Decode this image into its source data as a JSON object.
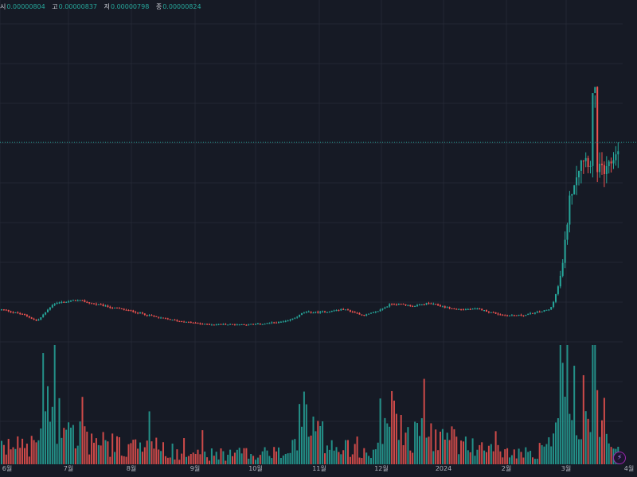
{
  "legend": {
    "open_label": "시",
    "open": "0.00000804",
    "high_label": "고",
    "high": "0.00000837",
    "low_label": "저",
    "low": "0.00000798",
    "close_label": "종",
    "close": "0.00000824"
  },
  "badge": {
    "glyph": "⚡",
    "icon": "lightning-icon"
  },
  "colors": {
    "background": "#161a25",
    "grid": "#232733",
    "up": "#26a69a",
    "down": "#ef5350",
    "price_line": "#26a69a",
    "axis_text": "#b2b5be"
  },
  "chart_data": {
    "type": "candlestick",
    "x_ticks": [
      "6월",
      "7월",
      "8월",
      "9월",
      "10월",
      "11월",
      "12월",
      "2024",
      "2월",
      "3월",
      "4월"
    ],
    "start_value": 2.68e-06,
    "last_close": 8.24e-06,
    "price_line_value": 8.24e-06,
    "grid": true,
    "anchors": [
      [
        2.7e-06,
        0.7
      ],
      [
        2.5e-06,
        1.2
      ],
      [
        2.3e-06,
        0.9
      ],
      [
        2.9e-06,
        3.2
      ],
      [
        3e-06,
        1.5
      ],
      [
        2.8e-06,
        1.0
      ],
      [
        2.6e-06,
        0.9
      ],
      [
        2.4e-06,
        0.8
      ],
      [
        2.3e-06,
        0.6
      ],
      [
        2.2e-06,
        0.5
      ],
      [
        2.2e-06,
        0.5
      ],
      [
        2.2e-06,
        0.6
      ],
      [
        2.3e-06,
        0.5
      ],
      [
        2.6e-06,
        2.4
      ],
      [
        2.6e-06,
        1.5
      ],
      [
        2.7e-06,
        1.0
      ],
      [
        2.5e-06,
        0.9
      ],
      [
        2.6e-06,
        0.8
      ],
      [
        2.9e-06,
        2.6
      ],
      [
        2.8e-06,
        1.3
      ],
      [
        2.9e-06,
        1.6
      ],
      [
        2.7e-06,
        1.2
      ],
      [
        2.7e-06,
        0.8
      ],
      [
        2.5e-06,
        0.6
      ],
      [
        2.5e-06,
        0.5
      ],
      [
        2.7e-06,
        1.0
      ],
      [
        4e-06,
        5.5
      ],
      [
        6.5e-06,
        4.2
      ],
      [
        7.8e-06,
        3.1
      ],
      [
        7.2e-06,
        2.0
      ],
      [
        8.2e-06,
        1.4
      ]
    ],
    "peak": [
      9.8e-06,
      2.8
    ],
    "max_volume": 6.0
  }
}
